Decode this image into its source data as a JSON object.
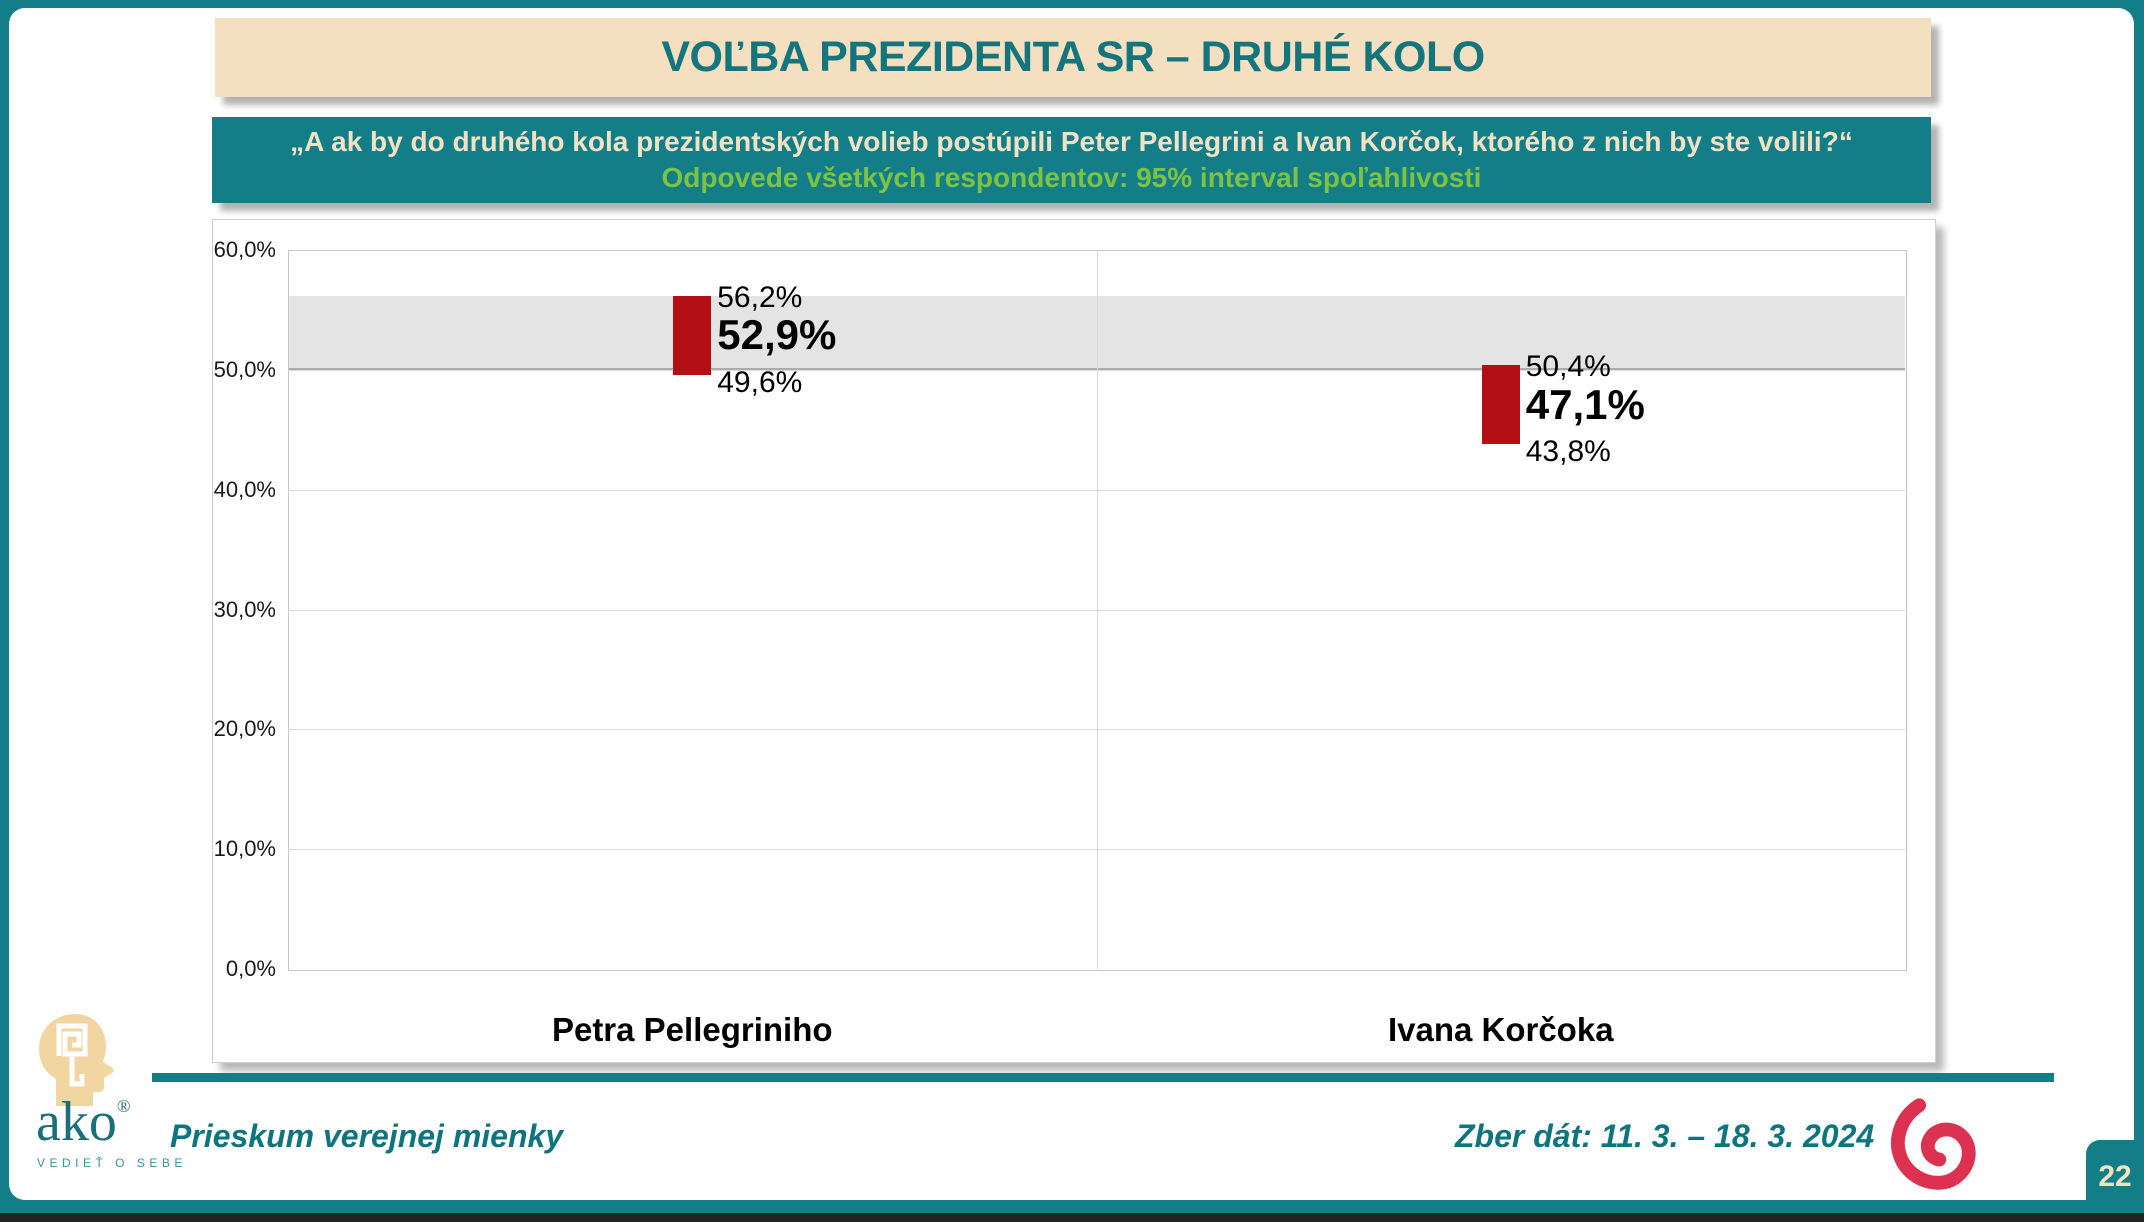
{
  "slide": {
    "title": "VOĽBA PREZIDENTA SR – DRUHÉ KOLO",
    "question": "„A ak by do druhého kola prezidentských volieb postúpili Peter Pellegrini a Ivan Korčok, ktorého z nich by ste volili?“",
    "subtitle": "Odpovede všetkých respondentov: 95% interval spoľahlivosti"
  },
  "chart_data": {
    "type": "bar",
    "title": "VOĽBA PREZIDENTA SR – DRUHÉ KOLO",
    "xlabel": "",
    "ylabel": "",
    "ylim": [
      0,
      60
    ],
    "grid": "horizontal-major-10pct",
    "legend": "none",
    "categories": [
      "Petra Pellegriniho",
      "Ivana Korčoka"
    ],
    "bars": [
      {
        "category": "Petra Pellegriniho",
        "value": 52.9,
        "value_label": "52,9%",
        "ci_low": 49.6,
        "ci_low_label": "49,6%",
        "ci_high": 56.2,
        "ci_high_label": "56,2%"
      },
      {
        "category": "Ivana Korčoka",
        "value": 47.1,
        "value_label": "47,1%",
        "ci_low": 43.8,
        "ci_low_label": "43,8%",
        "ci_high": 50.4,
        "ci_high_label": "50,4%"
      }
    ],
    "y_ticks": [
      {
        "value": 0,
        "label": "0,0%"
      },
      {
        "value": 10,
        "label": "10,0%"
      },
      {
        "value": 20,
        "label": "20,0%"
      },
      {
        "value": 30,
        "label": "30,0%"
      },
      {
        "value": 40,
        "label": "40,0%"
      },
      {
        "value": 50,
        "label": "50,0%"
      },
      {
        "value": 60,
        "label": "60,0%"
      }
    ],
    "highlight_band": {
      "from": 50.0,
      "to": 56.2
    },
    "bar_color": "#B21015",
    "band_color": "#E4E4E4"
  },
  "footer": {
    "left_text": "Prieskum verejnej mienky",
    "right_text": "Zber dát: 11. 3. – 18. 3. 2024",
    "page_number": "22",
    "logo": {
      "wordmark": "ako",
      "registered": "®",
      "tagline": "VEDIEŤ O SEBE"
    }
  },
  "colors": {
    "frame_teal": "#137E88",
    "title_bg_wheat": "#F4DFC0",
    "title_text_teal": "#15757D",
    "question_text_cream": "#F2E2C4",
    "subtitle_green": "#7CC342",
    "bar_red": "#B21015",
    "band_gray": "#E4E4E4",
    "footer_text_teal": "#0E757E",
    "spiral_crimson": "#DC3150",
    "head_tan": "#F2D6A2",
    "page_number_cream": "#F2E3BC",
    "bottom_strip_black": "#242424"
  }
}
